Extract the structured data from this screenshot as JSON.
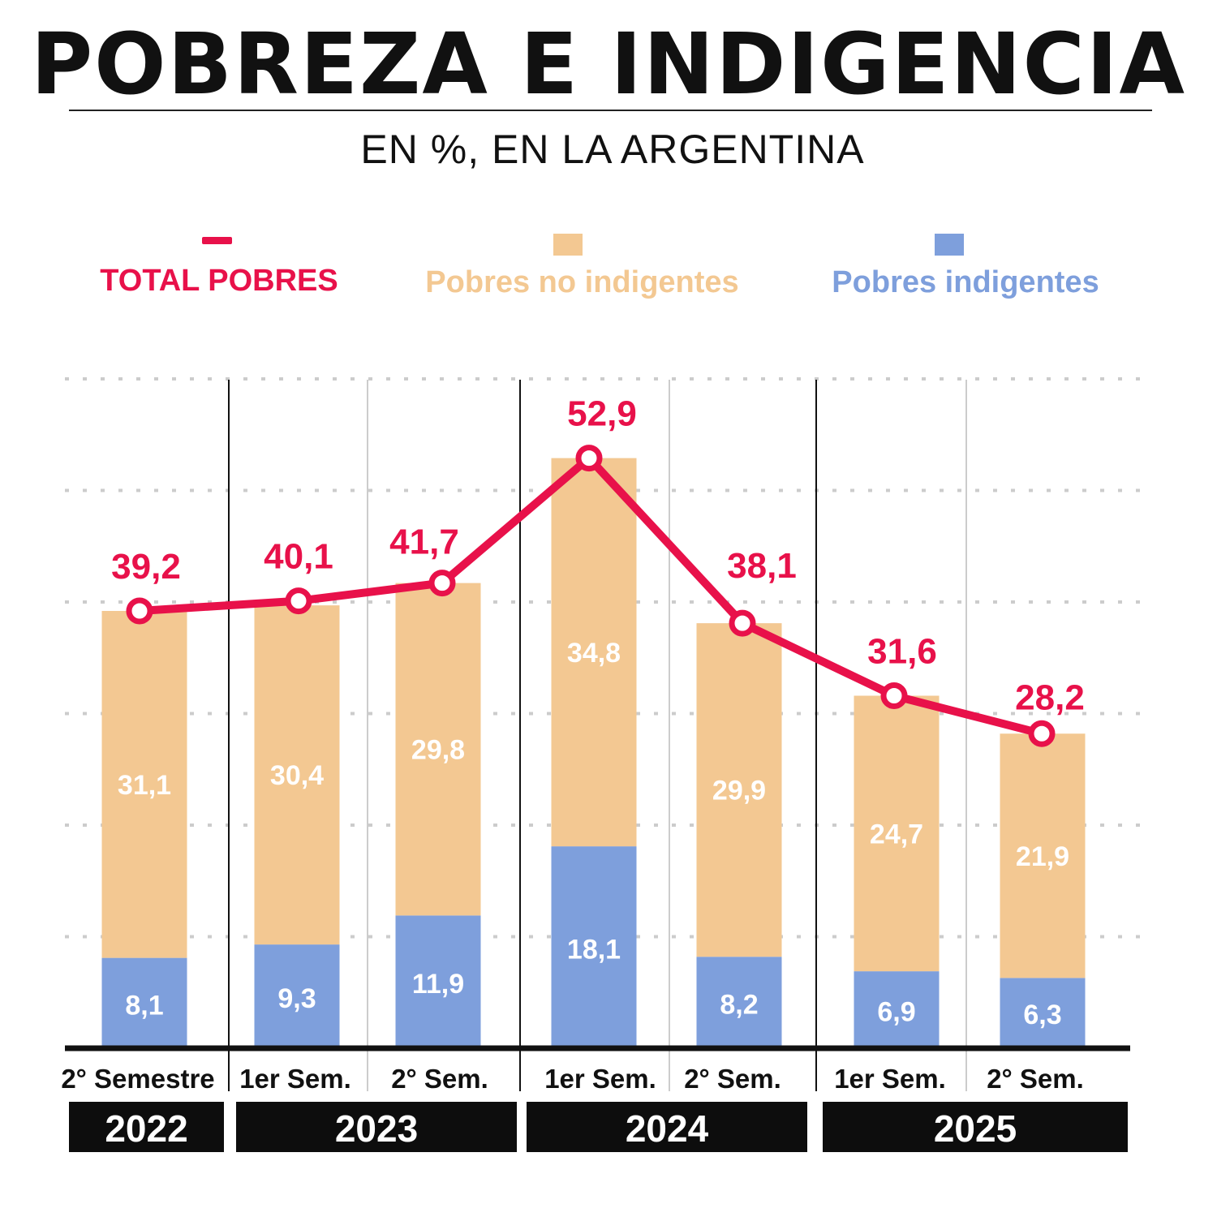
{
  "title": "POBREZA E INDIGENCIA",
  "subtitle": "EN %, EN LA ARGENTINA",
  "colors": {
    "total": "#E8114A",
    "no_indigentes": "#F3C892",
    "indigentes": "#7E9FDC"
  },
  "chart_data": {
    "type": "bar",
    "stacked": true,
    "categories": [
      "2° Semestre",
      "1er Sem.",
      "2° Sem.",
      "1er Sem.",
      "2° Sem.",
      "1er Sem.",
      "2° Sem."
    ],
    "years": [
      {
        "label": "2022",
        "span": 1
      },
      {
        "label": "2023",
        "span": 2
      },
      {
        "label": "2024",
        "span": 2
      },
      {
        "label": "2025",
        "span": 2
      }
    ],
    "series": [
      {
        "name": "Pobres indigentes",
        "type": "bar",
        "values": [
          8.1,
          9.3,
          11.9,
          18.1,
          8.2,
          6.9,
          6.3
        ],
        "labels": [
          "8,1",
          "9,3",
          "11,9",
          "18,1",
          "8,2",
          "6,9",
          "6,3"
        ]
      },
      {
        "name": "Pobres no indigentes",
        "type": "bar",
        "values": [
          31.1,
          30.4,
          29.8,
          34.8,
          29.9,
          24.7,
          21.9
        ],
        "labels": [
          "31,1",
          "30,4",
          "29,8",
          "34,8",
          "29,9",
          "24,7",
          "21,9"
        ]
      },
      {
        "name": "TOTAL POBRES",
        "type": "line",
        "values": [
          39.2,
          40.1,
          41.7,
          52.9,
          38.1,
          31.6,
          28.2
        ],
        "labels": [
          "39,2",
          "40,1",
          "41,7",
          "52,9",
          "38,1",
          "31,6",
          "28,2"
        ]
      }
    ],
    "ylim": [
      0,
      60
    ],
    "grid": true,
    "legend": "top"
  }
}
